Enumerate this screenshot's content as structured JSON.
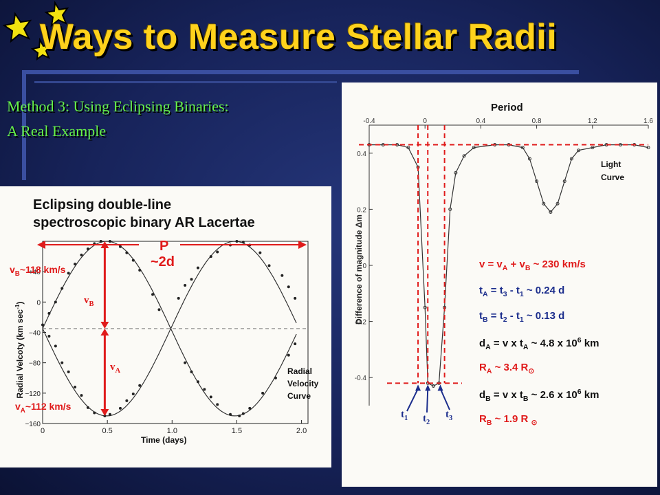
{
  "slide": {
    "title": "Ways to Measure Stellar Radii",
    "subtitle_line1": "Method 3: Using Eclipsing Binaries:",
    "subtitle_line2": "A Real Example"
  },
  "colors": {
    "background": "#1c2a66",
    "title": "#ffd21c",
    "subtitle": "#66f24a",
    "annotation_red": "#e01b1b",
    "annotation_navy": "#1b2d8c",
    "panel": "#fbfaf6"
  },
  "left_panel": {
    "heading_line1": "Eclipsing double-line",
    "heading_line2": "spectroscopic binary AR Lacertae",
    "period_label": "P",
    "period_value": "~2d",
    "vb_max": {
      "pre": "v",
      "sub": "B",
      "post": "~118 km/s"
    },
    "va_min": {
      "pre": "v",
      "sub": "A",
      "post": "~112 km/s"
    },
    "arrow_vb": {
      "pre": "v",
      "sub": "B"
    },
    "arrow_va": {
      "pre": "v",
      "sub": "A"
    },
    "ylabel": {
      "pre": "Radial Velcoty (km sec",
      "sup": "-1",
      "post": ")"
    },
    "xlabel": "Time (days)",
    "curve_label": [
      "Radial",
      "Velocity",
      "Curve"
    ]
  },
  "right_panel": {
    "top_label": "Period",
    "ylabel": "Difference of magnitude Δm",
    "curve_label": [
      "Light",
      "Curve"
    ],
    "t1": {
      "pre": "t",
      "sub": "1"
    },
    "t2": {
      "pre": "t",
      "sub": "2"
    },
    "t3": {
      "pre": "t",
      "sub": "3"
    },
    "equations": [
      {
        "parts": [
          [
            "n",
            "v = v"
          ],
          [
            "sub",
            "A"
          ],
          [
            "n",
            " + v"
          ],
          [
            "sub",
            "B"
          ],
          [
            "n",
            " ~ 230 km/s"
          ]
        ],
        "color": "red"
      },
      {
        "parts": [
          [
            "n",
            "t"
          ],
          [
            "sub",
            "A"
          ],
          [
            "n",
            " = t"
          ],
          [
            "sub",
            "3"
          ],
          [
            "n",
            " - t"
          ],
          [
            "sub",
            "1"
          ],
          [
            "n",
            " ~ 0.24 d"
          ]
        ],
        "color": "navy"
      },
      {
        "parts": [
          [
            "n",
            "t"
          ],
          [
            "sub",
            "B"
          ],
          [
            "n",
            " = t"
          ],
          [
            "sub",
            "2"
          ],
          [
            "n",
            " - t"
          ],
          [
            "sub",
            "1"
          ],
          [
            "n",
            " ~ 0.13 d"
          ]
        ],
        "color": "navy"
      },
      {
        "parts": [
          [
            "n",
            "d"
          ],
          [
            "sub",
            "A"
          ],
          [
            "n",
            " = v x t"
          ],
          [
            "sub",
            "A"
          ],
          [
            "n",
            " ~ 4.8 x 10"
          ],
          [
            "sup",
            "6"
          ],
          [
            "n",
            " km"
          ]
        ],
        "color": "black"
      },
      {
        "parts": [
          [
            "n",
            "R"
          ],
          [
            "sub",
            "A"
          ],
          [
            "n",
            " ~ 3.4 R"
          ],
          [
            "sub",
            "⊙"
          ]
        ],
        "color": "red"
      },
      {
        "parts": [
          [
            "n",
            "d"
          ],
          [
            "sub",
            "B"
          ],
          [
            "n",
            " = v x t"
          ],
          [
            "sub",
            "B"
          ],
          [
            "n",
            " ~ 2.6 x 10"
          ],
          [
            "sup",
            "6"
          ],
          [
            "n",
            " km"
          ]
        ],
        "color": "black"
      },
      {
        "parts": [
          [
            "n",
            "R"
          ],
          [
            "sub",
            "B"
          ],
          [
            "n",
            " ~ 1.9 R "
          ],
          [
            "sub",
            "⊙"
          ]
        ],
        "color": "red"
      }
    ]
  },
  "chart_data": [
    {
      "type": "scatter",
      "title": "Eclipsing double-line spectroscopic binary AR Lacertae",
      "xlabel": "Time (days)",
      "ylabel": "Radial Velcoty (km sec-1)",
      "xlim": [
        0,
        2.05
      ],
      "ylim": [
        -160,
        80
      ],
      "x_ticks": [
        "0",
        "0.5",
        "1.0",
        "1.5",
        "2.0"
      ],
      "y_ticks": [
        "+40",
        "0",
        "−40",
        "−80",
        "−120",
        "−160"
      ],
      "y_tick_values": [
        40,
        0,
        -40,
        -80,
        -120,
        -160
      ],
      "x_tick_values": [
        0,
        0.5,
        1.0,
        1.5,
        2.0
      ],
      "systemic_velocity": -35,
      "series": [
        {
          "x": [
            0.0,
            0.05,
            0.1,
            0.15,
            0.2,
            0.25,
            0.3,
            0.35,
            0.4,
            0.48,
            0.52,
            0.6,
            0.65,
            0.7,
            0.75,
            1.05,
            1.1,
            1.15,
            1.2,
            1.3,
            1.35,
            1.45,
            1.5,
            1.55,
            1.6,
            1.68,
            1.75,
            1.85,
            1.9,
            1.95
          ],
          "y": [
            -30,
            -45,
            -58,
            -80,
            -92,
            -112,
            -123,
            -139,
            -146,
            -150,
            -148,
            -140,
            -130,
            -121,
            -110,
            5,
            22,
            30,
            45,
            60,
            66,
            75,
            80,
            79,
            75,
            65,
            48,
            35,
            20,
            5
          ]
        },
        {
          "x": [
            0.05,
            0.1,
            0.15,
            0.2,
            0.25,
            0.3,
            0.35,
            0.4,
            0.45,
            0.52,
            0.6,
            0.65,
            0.7,
            0.75,
            0.85,
            0.9,
            1.1,
            1.15,
            1.2,
            1.25,
            1.3,
            1.35,
            1.45,
            1.52,
            1.55,
            1.6,
            1.7,
            1.8,
            1.9,
            1.95
          ],
          "y": [
            -15,
            0,
            18,
            38,
            50,
            62,
            70,
            77,
            80,
            80,
            73,
            65,
            55,
            42,
            10,
            -10,
            -80,
            -92,
            -105,
            -115,
            -125,
            -135,
            -148,
            -150,
            -147,
            -140,
            -120,
            -100,
            -70,
            -55
          ]
        }
      ]
    },
    {
      "type": "scatter",
      "title": "Period",
      "ylabel": "Difference of magnitude Δm",
      "xlim": [
        -0.4,
        1.6
      ],
      "ylim": [
        0.5,
        -0.5
      ],
      "x_ticks": [
        "-0.4",
        "0",
        "0.4",
        "0.8",
        "1.2",
        "1.6"
      ],
      "x_tick_values": [
        -0.4,
        0,
        0.4,
        0.8,
        1.2,
        1.6
      ],
      "y_ticks": [
        "0.4",
        "0.2",
        "0",
        "-0.2",
        "-0.4"
      ],
      "y_tick_values": [
        0.4,
        0.2,
        0,
        -0.2,
        -0.4
      ],
      "series": [
        {
          "x": [
            -0.4,
            -0.3,
            -0.2,
            -0.12,
            -0.05,
            0.0,
            0.02,
            0.06,
            0.1,
            0.14,
            0.18,
            0.22,
            0.28,
            0.35,
            0.5,
            0.6,
            0.7,
            0.75,
            0.8,
            0.85,
            0.9,
            0.95,
            1.0,
            1.05,
            1.1,
            1.2,
            1.3,
            1.4,
            1.5,
            1.6
          ],
          "y": [
            0.43,
            0.43,
            0.43,
            0.42,
            0.35,
            -0.15,
            -0.42,
            -0.43,
            -0.42,
            -0.15,
            0.2,
            0.33,
            0.39,
            0.42,
            0.43,
            0.43,
            0.42,
            0.38,
            0.3,
            0.22,
            0.19,
            0.22,
            0.3,
            0.38,
            0.41,
            0.42,
            0.43,
            0.43,
            0.43,
            0.42
          ]
        }
      ]
    }
  ]
}
